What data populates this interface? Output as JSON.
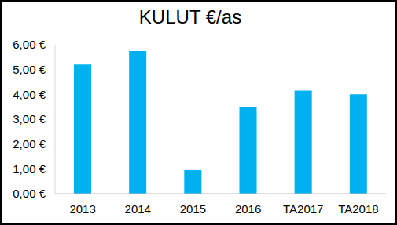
{
  "chart_data": {
    "type": "bar",
    "title": "KULUT €/as",
    "categories": [
      "2013",
      "2014",
      "2015",
      "2016",
      "TA2017",
      "TA2018"
    ],
    "values": [
      5.2,
      5.75,
      0.95,
      3.5,
      4.15,
      4.0
    ],
    "color": "#00b0f0",
    "ylim": [
      0,
      6
    ],
    "yticks": [
      {
        "value": 0,
        "label": "0,00 €"
      },
      {
        "value": 1,
        "label": "1,00 €"
      },
      {
        "value": 2,
        "label": "2,00 €"
      },
      {
        "value": 3,
        "label": "3,00 €"
      },
      {
        "value": 4,
        "label": "4,00 €"
      },
      {
        "value": 5,
        "label": "5,00 €"
      },
      {
        "value": 6,
        "label": "6,00 €"
      }
    ],
    "grid": false
  }
}
